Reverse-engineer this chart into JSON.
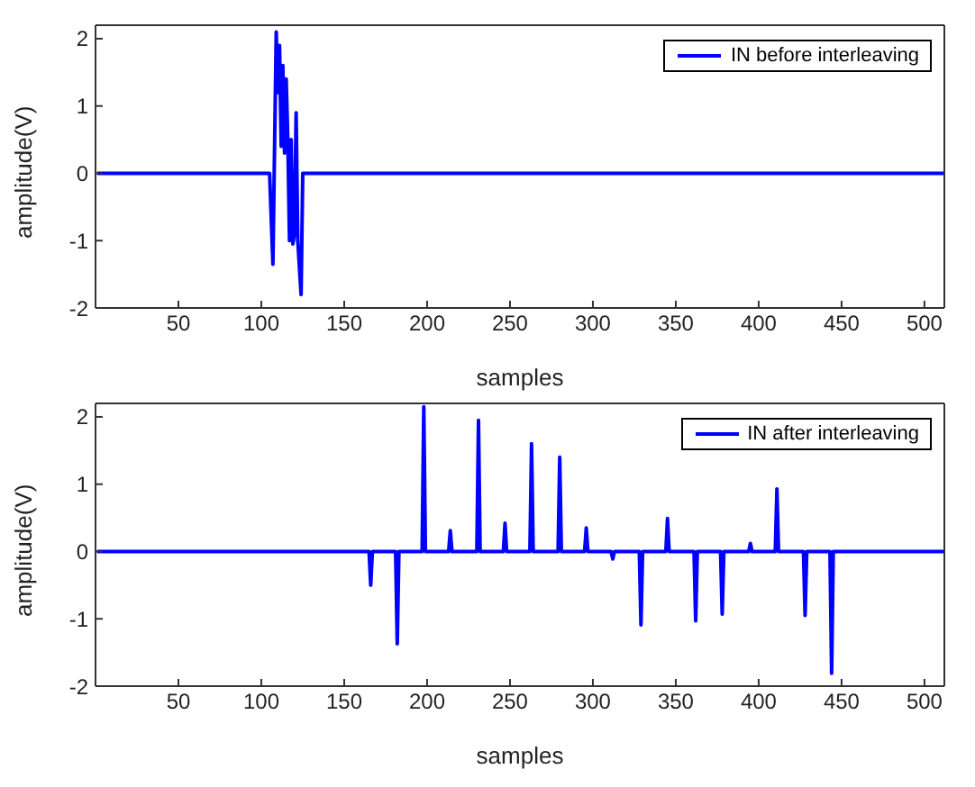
{
  "chart_data": [
    {
      "type": "line",
      "xlabel": "samples",
      "ylabel": "amplitude(V)",
      "xlim": [
        0,
        512
      ],
      "ylim": [
        -2,
        2.2
      ],
      "xticks": [
        50,
        100,
        150,
        200,
        250,
        300,
        350,
        400,
        450,
        500
      ],
      "yticks": [
        -2,
        -1,
        0,
        1,
        2
      ],
      "legend": "top right",
      "marker": "none",
      "line_style": "solid",
      "series": [
        {
          "name": "IN before interleaving",
          "color": "#0000ff",
          "x": [
            1,
            105,
            107,
            109,
            110,
            111,
            112,
            113,
            114,
            115,
            116,
            117,
            118,
            119,
            120,
            121,
            122,
            124,
            125,
            512
          ],
          "values": [
            0,
            0,
            -1.35,
            2.1,
            1.2,
            1.9,
            0.4,
            1.6,
            0.3,
            1.4,
            0.5,
            -1.0,
            0.5,
            -1.05,
            -0.9,
            0.9,
            -1.0,
            -1.8,
            0,
            0
          ]
        }
      ]
    },
    {
      "type": "line",
      "xlabel": "samples",
      "ylabel": "amplitude(V)",
      "xlim": [
        0,
        512
      ],
      "ylim": [
        -2,
        2.2
      ],
      "xticks": [
        50,
        100,
        150,
        200,
        250,
        300,
        350,
        400,
        450,
        500
      ],
      "yticks": [
        -2,
        -1,
        0,
        1,
        2
      ],
      "legend": "top right",
      "marker": "none",
      "line_style": "solid",
      "series": [
        {
          "name": "IN after interleaving",
          "color": "#0000ff",
          "x": [
            1,
            165,
            166,
            167,
            181,
            182,
            183,
            197,
            198,
            199,
            213,
            214,
            215,
            230,
            231,
            232,
            246,
            247,
            248,
            262,
            263,
            264,
            279,
            280,
            281,
            295,
            296,
            297,
            311,
            312,
            313,
            328,
            329,
            330,
            344,
            345,
            346,
            361,
            362,
            363,
            377,
            378,
            379,
            394,
            395,
            396,
            410,
            411,
            412,
            427,
            428,
            429,
            443,
            444,
            445,
            512
          ],
          "values": [
            0,
            0,
            -0.5,
            0,
            0,
            -1.37,
            0,
            0,
            2.15,
            0,
            0,
            0.31,
            0,
            0,
            1.95,
            0,
            0,
            0.42,
            0,
            0,
            1.6,
            0,
            0,
            1.4,
            0,
            0,
            0.35,
            0,
            0,
            -0.11,
            0,
            0,
            -1.09,
            0,
            0,
            0.49,
            0,
            0,
            -1.03,
            0,
            0,
            -0.93,
            0,
            0,
            0.12,
            0,
            0,
            0.93,
            0,
            0,
            -0.95,
            0,
            0,
            -1.81,
            0,
            0
          ]
        }
      ]
    }
  ]
}
